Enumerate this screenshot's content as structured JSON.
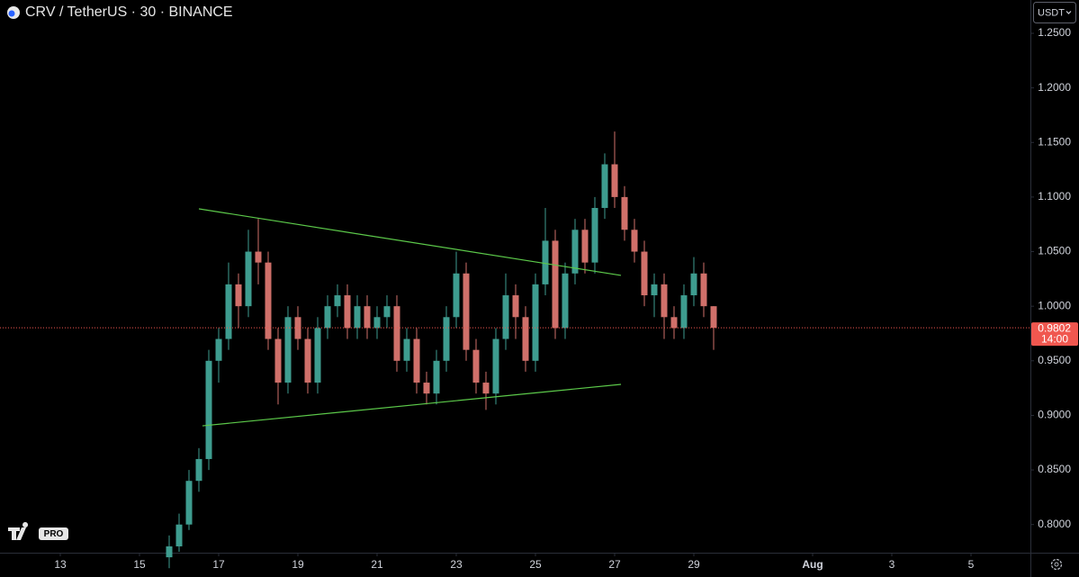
{
  "chart_data": {
    "type": "candlestick",
    "title": "CRV / TetherUS · 30 · BINANCE",
    "currency_button": "USDT",
    "logo_badge": "PRO",
    "up_color": "#3e9c8f",
    "down_color": "#d0706a",
    "x": [
      15.75,
      16,
      16.25,
      16.5,
      16.75,
      17,
      17.25,
      17.5,
      17.75,
      18,
      18.25,
      18.5,
      18.75,
      19,
      19.25,
      19.5,
      19.75,
      20,
      20.25,
      20.5,
      20.75,
      21,
      21.25,
      21.5,
      21.75,
      22,
      22.25,
      22.5,
      22.75,
      23,
      23.25,
      23.5,
      23.75,
      24,
      24.25,
      24.5,
      24.75,
      25,
      25.25,
      25.5,
      25.75,
      26,
      26.25,
      26.5,
      26.75,
      27,
      27.25,
      27.5,
      27.75,
      28,
      28.25,
      28.5,
      28.75,
      29,
      29.25,
      29.5
    ],
    "open": [
      0.77,
      0.78,
      0.8,
      0.84,
      0.86,
      0.95,
      0.97,
      1.02,
      1.0,
      1.05,
      1.04,
      0.97,
      0.93,
      0.99,
      0.97,
      0.93,
      0.98,
      1.0,
      1.01,
      0.98,
      1.0,
      0.98,
      0.99,
      1.0,
      0.95,
      0.97,
      0.93,
      0.92,
      0.95,
      0.99,
      1.03,
      0.96,
      0.93,
      0.92,
      0.97,
      1.01,
      0.99,
      0.95,
      1.02,
      1.06,
      0.98,
      1.03,
      1.07,
      1.04,
      1.09,
      1.13,
      1.1,
      1.07,
      1.05,
      1.01,
      1.02,
      0.99,
      0.98,
      1.01,
      1.03,
      1.0
    ],
    "high": [
      0.79,
      0.81,
      0.85,
      0.87,
      0.96,
      0.98,
      1.04,
      1.03,
      1.07,
      1.08,
      1.05,
      0.98,
      1.0,
      1.0,
      0.98,
      0.99,
      1.01,
      1.02,
      1.02,
      1.01,
      1.01,
      1.0,
      1.01,
      1.01,
      0.98,
      0.98,
      0.94,
      0.96,
      1.0,
      1.05,
      1.04,
      0.97,
      0.94,
      0.98,
      1.03,
      1.02,
      1.0,
      1.03,
      1.09,
      1.07,
      1.04,
      1.08,
      1.08,
      1.1,
      1.14,
      1.16,
      1.11,
      1.08,
      1.06,
      1.03,
      1.03,
      1.0,
      1.02,
      1.045,
      1.04,
      1.0
    ],
    "low": [
      0.76,
      0.775,
      0.795,
      0.83,
      0.85,
      0.93,
      0.96,
      0.98,
      0.99,
      1.02,
      0.96,
      0.91,
      0.92,
      0.96,
      0.92,
      0.92,
      0.97,
      0.99,
      0.97,
      0.97,
      0.97,
      0.97,
      0.98,
      0.94,
      0.94,
      0.92,
      0.91,
      0.91,
      0.94,
      0.98,
      0.95,
      0.92,
      0.905,
      0.91,
      0.96,
      0.97,
      0.94,
      0.94,
      1.01,
      0.97,
      0.97,
      1.02,
      1.03,
      1.03,
      1.08,
      1.09,
      1.06,
      1.04,
      1.0,
      0.99,
      0.97,
      0.97,
      0.97,
      1.0,
      0.99,
      0.96
    ],
    "close": [
      0.78,
      0.8,
      0.84,
      0.86,
      0.95,
      0.97,
      1.02,
      1.0,
      1.05,
      1.04,
      0.97,
      0.93,
      0.99,
      0.97,
      0.93,
      0.98,
      1.0,
      1.01,
      0.98,
      1.0,
      0.98,
      0.99,
      1.0,
      0.95,
      0.97,
      0.93,
      0.92,
      0.95,
      0.99,
      1.03,
      0.96,
      0.93,
      0.92,
      0.97,
      1.01,
      0.99,
      0.95,
      1.02,
      1.06,
      0.98,
      1.03,
      1.07,
      1.04,
      1.09,
      1.13,
      1.1,
      1.07,
      1.05,
      1.01,
      1.02,
      0.99,
      0.98,
      1.01,
      1.03,
      1.0,
      0.9802
    ],
    "last_price": 0.9802,
    "countdown": "14:00",
    "price_line_color": "#f0574f",
    "trendlines": [
      {
        "color": "#5cc94a",
        "x": [
          16.5,
          27.16
        ],
        "y": [
          1.0892,
          1.0282
        ]
      },
      {
        "color": "#5cc94a",
        "x": [
          16.59,
          27.16
        ],
        "y": [
          0.8904,
          0.9284
        ]
      }
    ],
    "xlim": [
      11.477,
      37.5
    ],
    "ylim": [
      0.7742,
      1.2805
    ],
    "xticks": [
      13,
      15,
      17,
      19,
      21,
      23,
      25,
      27,
      29,
      {
        "value": 32,
        "label": "Aug"
      },
      {
        "value": 34,
        "label": "3"
      },
      {
        "value": 36,
        "label": "5"
      }
    ],
    "yticks": [
      {
        "value": 0.8,
        "label": "0.8000"
      },
      {
        "value": 0.85,
        "label": "0.8500"
      },
      {
        "value": 0.9,
        "label": "0.9000"
      },
      {
        "value": 0.95,
        "label": "0.9500"
      },
      {
        "value": 1.0,
        "label": "1.0000"
      },
      {
        "value": 1.05,
        "label": "1.0500"
      },
      {
        "value": 1.1,
        "label": "1.1000"
      },
      {
        "value": 1.15,
        "label": "1.1500"
      },
      {
        "value": 1.2,
        "label": "1.2000"
      },
      {
        "value": 1.25,
        "label": "1.2500"
      }
    ]
  }
}
